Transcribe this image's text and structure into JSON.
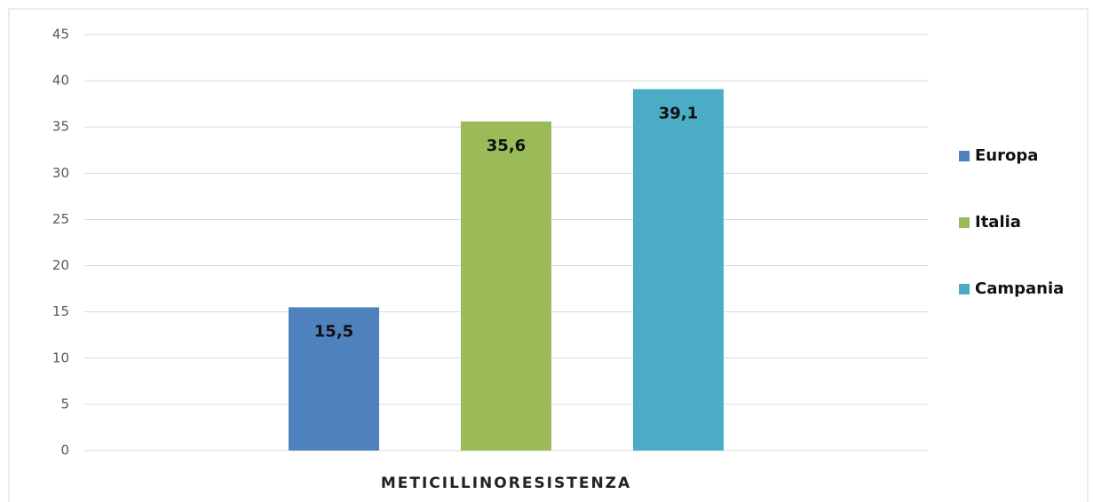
{
  "chart_data": {
    "type": "bar",
    "categories": [
      "METICILLINORESISTENZA"
    ],
    "series": [
      {
        "name": "Europa",
        "color": "#4f81bd",
        "values": [
          15.5
        ],
        "value_labels": [
          "15,5"
        ]
      },
      {
        "name": "Italia",
        "color": "#9bbb59",
        "values": [
          35.6
        ],
        "value_labels": [
          "35,6"
        ]
      },
      {
        "name": "Campania",
        "color": "#4bacc6",
        "values": [
          39.1
        ],
        "value_labels": [
          "39,1"
        ]
      }
    ],
    "ylim": [
      0,
      45
    ],
    "yticks": [
      0,
      5,
      10,
      15,
      20,
      25,
      30,
      35,
      40,
      45
    ],
    "grid": true,
    "legend": "right"
  }
}
